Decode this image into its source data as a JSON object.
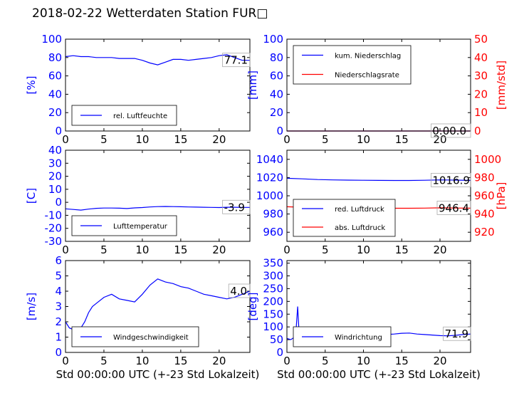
{
  "title": "2018-02-22 Wetterdaten Station FUR□",
  "colors": {
    "blue": "#0000ff",
    "red": "#ff0000",
    "black": "#000000",
    "grid": "#000000"
  },
  "chart_data": [
    {
      "id": "humidity",
      "type": "line",
      "xlim": [
        0,
        24
      ],
      "ylim": [
        0,
        100
      ],
      "xticks": [
        0,
        5,
        10,
        15,
        20
      ],
      "yticks": [
        0,
        20,
        40,
        60,
        80,
        100
      ],
      "ylabel": "[%]",
      "series": [
        {
          "name": "rel. Luftfeuchte",
          "color": "#0000ff",
          "x": [
            0,
            1,
            2,
            3,
            4,
            5,
            6,
            7,
            8,
            9,
            10,
            11,
            12,
            13,
            14,
            15,
            16,
            17,
            18,
            19,
            20,
            21,
            22,
            23,
            24
          ],
          "y": [
            81,
            82,
            81,
            81,
            80,
            80,
            80,
            79,
            79,
            79,
            77,
            74,
            72,
            75,
            78,
            78,
            77,
            78,
            79,
            80,
            82,
            83,
            80,
            77,
            77
          ]
        }
      ],
      "annotation": "77.1"
    },
    {
      "id": "precip",
      "type": "line",
      "xlim": [
        0,
        24
      ],
      "ylim": [
        0,
        100
      ],
      "ylim2": [
        0,
        50
      ],
      "xticks": [
        0,
        5,
        10,
        15,
        20
      ],
      "yticks": [
        0,
        20,
        40,
        60,
        80,
        100
      ],
      "yticks2": [
        0,
        10,
        20,
        30,
        40,
        50
      ],
      "ylabel": "[mm]",
      "ylabel2": "[mm/std]",
      "series": [
        {
          "name": "kum. Niederschlag",
          "color": "#0000ff",
          "axis": "left",
          "x": [
            0,
            24
          ],
          "y": [
            0,
            0
          ]
        },
        {
          "name": "Niederschlagsrate",
          "color": "#ff0000",
          "axis": "right",
          "x": [
            0,
            24
          ],
          "y": [
            0,
            0
          ]
        }
      ],
      "annotation": "0.00.0"
    },
    {
      "id": "temperature",
      "type": "line",
      "xlim": [
        0,
        24
      ],
      "ylim": [
        -30,
        40
      ],
      "xticks": [
        0,
        5,
        10,
        15,
        20
      ],
      "yticks": [
        -30,
        -20,
        -10,
        0,
        10,
        20,
        30,
        40
      ],
      "ylabel": "[C]",
      "series": [
        {
          "name": "Lufttemperatur",
          "color": "#0000ff",
          "x": [
            0,
            1,
            2,
            3,
            4,
            5,
            6,
            7,
            8,
            9,
            10,
            11,
            12,
            13,
            14,
            15,
            16,
            17,
            18,
            19,
            20,
            21,
            22,
            23,
            24
          ],
          "y": [
            -5.0,
            -5.5,
            -6.0,
            -5.2,
            -4.6,
            -4.4,
            -4.4,
            -4.5,
            -4.8,
            -4.3,
            -4.0,
            -3.6,
            -3.3,
            -3.2,
            -3.3,
            -3.4,
            -3.6,
            -3.7,
            -3.8,
            -3.9,
            -4.0,
            -3.8,
            -3.8,
            -3.9,
            -3.9
          ]
        }
      ],
      "annotation": "-3.9"
    },
    {
      "id": "pressure",
      "type": "line",
      "xlim": [
        0,
        24
      ],
      "ylim": [
        950,
        1050
      ],
      "ylim2": [
        910,
        1010
      ],
      "xticks": [
        0,
        5,
        10,
        15,
        20
      ],
      "yticks": [
        960,
        980,
        1000,
        1020,
        1040
      ],
      "yticks2": [
        920,
        940,
        960,
        980,
        1000
      ],
      "ylabel": "",
      "ylabel2": "[hPa]",
      "series": [
        {
          "name": "red. Luftdruck",
          "color": "#0000ff",
          "axis": "left",
          "x": [
            0,
            2,
            4,
            6,
            8,
            10,
            12,
            14,
            16,
            18,
            20,
            22,
            24
          ],
          "y": [
            1019.2,
            1018.6,
            1017.8,
            1017.4,
            1017.2,
            1017.0,
            1016.9,
            1016.8,
            1016.8,
            1017.0,
            1017.4,
            1017.2,
            1016.9
          ]
        },
        {
          "name": "abs. Luftdruck",
          "color": "#ff0000",
          "axis": "right",
          "x": [
            0,
            2,
            4,
            6,
            8,
            10,
            12,
            14,
            16,
            18,
            20,
            22,
            24
          ],
          "y": [
            948.0,
            947.4,
            946.8,
            946.6,
            946.5,
            946.4,
            946.3,
            946.3,
            946.3,
            946.5,
            946.8,
            946.6,
            946.4
          ]
        }
      ],
      "annotations": [
        "1016.9",
        "946.4"
      ]
    },
    {
      "id": "windspeed",
      "type": "line",
      "xlim": [
        0,
        24
      ],
      "ylim": [
        0,
        6
      ],
      "xticks": [
        0,
        5,
        10,
        15,
        20
      ],
      "yticks": [
        0,
        1,
        2,
        3,
        4,
        5,
        6
      ],
      "xlabel": "Std 00:00:00 UTC (+-23 Std Lokalzeit)",
      "ylabel": "[m/s]",
      "series": [
        {
          "name": "Windgeschwindigkeit",
          "color": "#0000ff",
          "x": [
            0,
            0.5,
            1,
            1.5,
            2,
            2.5,
            3,
            3.5,
            4,
            5,
            6,
            7,
            8,
            9,
            10,
            11,
            12,
            13,
            14,
            15,
            16,
            17,
            18,
            19,
            20,
            21,
            22,
            23,
            24
          ],
          "y": [
            2.0,
            1.6,
            1.5,
            1.0,
            1.6,
            2.0,
            2.6,
            3.0,
            3.2,
            3.6,
            3.8,
            3.5,
            3.4,
            3.3,
            3.8,
            4.4,
            4.8,
            4.6,
            4.5,
            4.3,
            4.2,
            4.0,
            3.8,
            3.7,
            3.6,
            3.5,
            3.6,
            3.8,
            4.0
          ]
        }
      ],
      "annotation": "4.0"
    },
    {
      "id": "winddir",
      "type": "line",
      "xlim": [
        0,
        24
      ],
      "ylim": [
        0,
        360
      ],
      "xticks": [
        0,
        5,
        10,
        15,
        20
      ],
      "yticks": [
        0,
        50,
        100,
        150,
        200,
        250,
        300,
        350
      ],
      "xlabel": "Std 00:00:00 UTC (+-23 Std Lokalzeit)",
      "ylabel": "[deg]",
      "series": [
        {
          "name": "Windrichtung",
          "color": "#0000ff",
          "x": [
            0,
            0.5,
            1,
            1.2,
            1.4,
            1.6,
            2,
            3,
            4,
            5,
            6,
            7,
            8,
            9,
            10,
            11,
            12,
            13,
            14,
            15,
            16,
            17,
            18,
            19,
            20,
            21,
            22,
            23,
            24
          ],
          "y": [
            55,
            50,
            60,
            90,
            180,
            70,
            60,
            58,
            60,
            58,
            57,
            60,
            58,
            60,
            62,
            64,
            66,
            70,
            72,
            75,
            76,
            72,
            70,
            68,
            66,
            65,
            67,
            70,
            71.9
          ]
        }
      ],
      "annotation": "71.9"
    }
  ]
}
